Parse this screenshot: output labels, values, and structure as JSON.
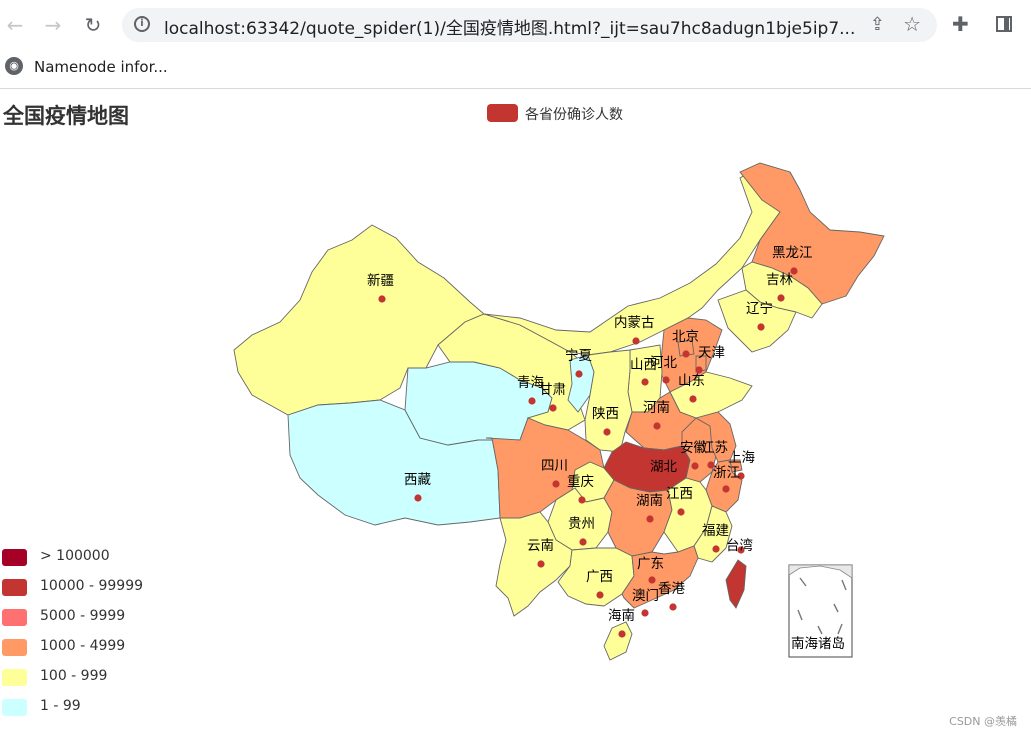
{
  "browser": {
    "url": "localhost:63342/quote_spider(1)/全国疫情地图.html?_ijt=sau7hc8adugn1bje5ip7...",
    "bookmark": "Namenode infor...",
    "icons": [
      "back-icon",
      "forward-icon",
      "reload-icon",
      "info-icon",
      "share-icon",
      "star-icon",
      "puzzle-icon",
      "side-panel-icon",
      "globe-icon"
    ]
  },
  "chart": {
    "title": "全国疫情地图",
    "series_name": "各省份确诊人数",
    "credit": "CSDN @羡橘"
  },
  "colors": {
    "lv1": "#a50026",
    "lv2": "#d73027",
    "lv3": "#f46d43",
    "lv4": "#fdae61",
    "lv5": "#ffff99",
    "lv6": "#ccffff",
    "series": "#c23531"
  },
  "visual_map": [
    {
      "label": "> 100000",
      "color": "#a50026"
    },
    {
      "label": "10000 - 99999",
      "color": "#c23531"
    },
    {
      "label": "5000 - 9999",
      "color": "#ff7070"
    },
    {
      "label": "1000 - 4999",
      "color": "#ff9966"
    },
    {
      "label": "100 - 999",
      "color": "#ffff99"
    },
    {
      "label": "1 - 99",
      "color": "#ccffff"
    }
  ],
  "provinces": [
    {
      "id": "xinjiang",
      "name": "新疆",
      "range": "100 - 999"
    },
    {
      "id": "xizang",
      "name": "西藏",
      "range": "1 - 99"
    },
    {
      "id": "qinghai",
      "name": "青海",
      "range": "1 - 99"
    },
    {
      "id": "gansu",
      "name": "甘肃",
      "range": "100 - 999"
    },
    {
      "id": "ningxia",
      "name": "宁夏",
      "range": "1 - 99"
    },
    {
      "id": "neimenggu",
      "name": "内蒙古",
      "range": "100 - 999"
    },
    {
      "id": "heilongjiang",
      "name": "黑龙江",
      "range": "1000 - 4999"
    },
    {
      "id": "jilin",
      "name": "吉林",
      "range": "100 - 999"
    },
    {
      "id": "liaoning",
      "name": "辽宁",
      "range": "100 - 999"
    },
    {
      "id": "beijing",
      "name": "北京",
      "range": "1000 - 4999"
    },
    {
      "id": "tianjin",
      "name": "天津",
      "range": "1000 - 4999"
    },
    {
      "id": "hebei",
      "name": "河北",
      "range": "1000 - 4999"
    },
    {
      "id": "shanxi",
      "name": "山西",
      "range": "100 - 999"
    },
    {
      "id": "shandong",
      "name": "山东",
      "range": "100 - 999"
    },
    {
      "id": "henan",
      "name": "河南",
      "range": "1000 - 4999"
    },
    {
      "id": "shaanxi",
      "name": "陕西",
      "range": "100 - 999"
    },
    {
      "id": "sichuan",
      "name": "四川",
      "range": "1000 - 4999"
    },
    {
      "id": "chongqing",
      "name": "重庆",
      "range": "100 - 999"
    },
    {
      "id": "hubei",
      "name": "湖北",
      "range": "10000 - 99999"
    },
    {
      "id": "anhui",
      "name": "安徽",
      "range": "1000 - 4999"
    },
    {
      "id": "jiangsu",
      "name": "江苏",
      "range": "1000 - 4999"
    },
    {
      "id": "shanghai",
      "name": "上海",
      "range": "1000 - 4999"
    },
    {
      "id": "zhejiang",
      "name": "浙江",
      "range": "1000 - 4999"
    },
    {
      "id": "guizhou",
      "name": "贵州",
      "range": "100 - 999"
    },
    {
      "id": "hunan",
      "name": "湖南",
      "range": "1000 - 4999"
    },
    {
      "id": "jiangxi",
      "name": "江西",
      "range": "100 - 999"
    },
    {
      "id": "fujian",
      "name": "福建",
      "range": "100 - 999"
    },
    {
      "id": "taiwan",
      "name": "台湾",
      "range": "10000 - 99999"
    },
    {
      "id": "yunnan",
      "name": "云南",
      "range": "100 - 999"
    },
    {
      "id": "guangxi",
      "name": "广西",
      "range": "100 - 999"
    },
    {
      "id": "guangdong",
      "name": "广东",
      "range": "1000 - 4999"
    },
    {
      "id": "hongkong",
      "name": "香港",
      "range": "1000 - 4999"
    },
    {
      "id": "macau",
      "name": "澳门",
      "range": "100 - 999"
    },
    {
      "id": "hainan",
      "name": "海南",
      "range": "100 - 999"
    },
    {
      "id": "nanhai",
      "name": "南海诸岛",
      "range": ""
    }
  ]
}
